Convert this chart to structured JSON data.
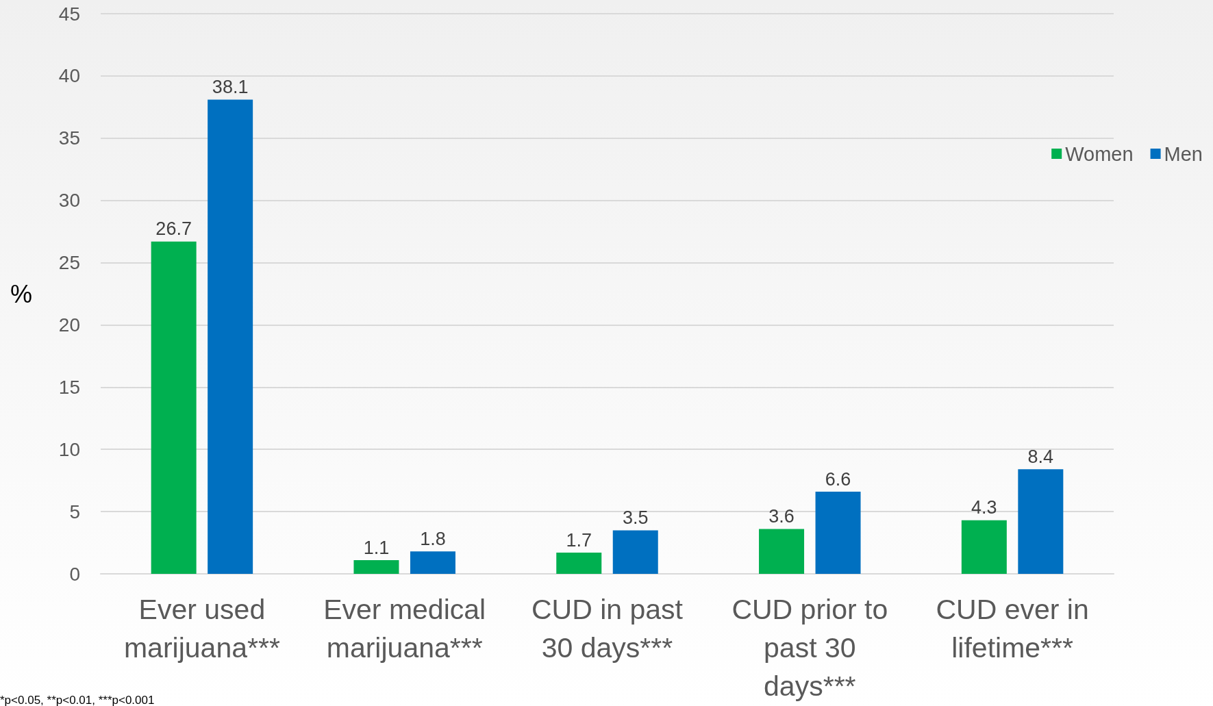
{
  "chart_data": {
    "type": "bar",
    "ylabel": "%",
    "categories": [
      "Ever used marijuana***",
      "Ever medical marijuana***",
      "CUD in past 30 days***",
      "CUD prior to past 30 days***",
      "CUD ever in lifetime***"
    ],
    "series": [
      {
        "name": "Women",
        "color": "#00b050",
        "values": [
          26.7,
          1.1,
          1.7,
          3.6,
          4.3
        ]
      },
      {
        "name": "Men",
        "color": "#0070c0",
        "values": [
          38.1,
          1.8,
          3.5,
          6.6,
          8.4
        ]
      }
    ],
    "ylim": [
      0,
      45
    ],
    "yticks": [
      0,
      5,
      10,
      15,
      20,
      25,
      30,
      35,
      40,
      45
    ],
    "grid": "y",
    "legend": "right",
    "data_labels": true,
    "annotations": [
      "*p<0.05, **p<0.01, ***p<0.001"
    ]
  }
}
